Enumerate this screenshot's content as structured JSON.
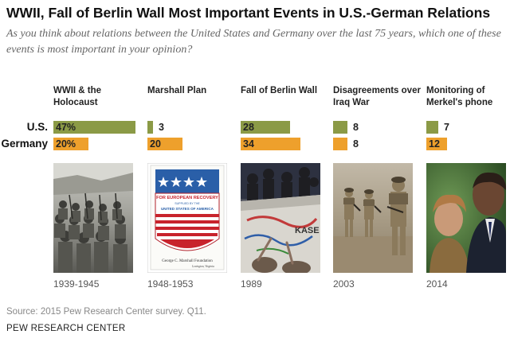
{
  "title": "WWII, Fall of Berlin Wall Most Important Events in U.S.-German Relations",
  "subtitle": "As you think about relations between the United States and Germany over the last 75 years, which one of these events is most important in your opinion?",
  "chart_data": {
    "type": "bar",
    "categories": [
      "WWII & the Holocaust",
      "Marshall Plan",
      "Fall of Berlin Wall",
      "Disagreements over Iraq War",
      "Monitoring of Merkel's phone"
    ],
    "series": [
      {
        "name": "U.S.",
        "values": [
          47,
          3,
          28,
          8,
          7
        ],
        "labels": [
          "47%",
          "3",
          "28",
          "8",
          "7"
        ],
        "color": "#8b9a46"
      },
      {
        "name": "Germany",
        "values": [
          20,
          20,
          34,
          8,
          12
        ],
        "labels": [
          "20%",
          "20",
          "34",
          "8",
          "12"
        ],
        "color": "#eea02c"
      }
    ],
    "years": [
      "1939-1945",
      "1948-1953",
      "1989",
      "2003",
      "2014"
    ],
    "units": "%"
  },
  "marshall_poster": {
    "line1": "FOR EUROPEAN RECOVERY",
    "line2": "SUPPLIED BY THE",
    "line3": "UNITED STATES OF AMERICA",
    "line4": "George C. Marshall Foundation",
    "line5": "Lexington, Virginia"
  },
  "berlin_wall_graffiti": "KASE",
  "source": "Source: 2015 Pew Research Center survey. Q11.",
  "organization": "PEW RESEARCH CENTER",
  "colors": {
    "us": "#8b9a46",
    "germany": "#eea02c"
  }
}
